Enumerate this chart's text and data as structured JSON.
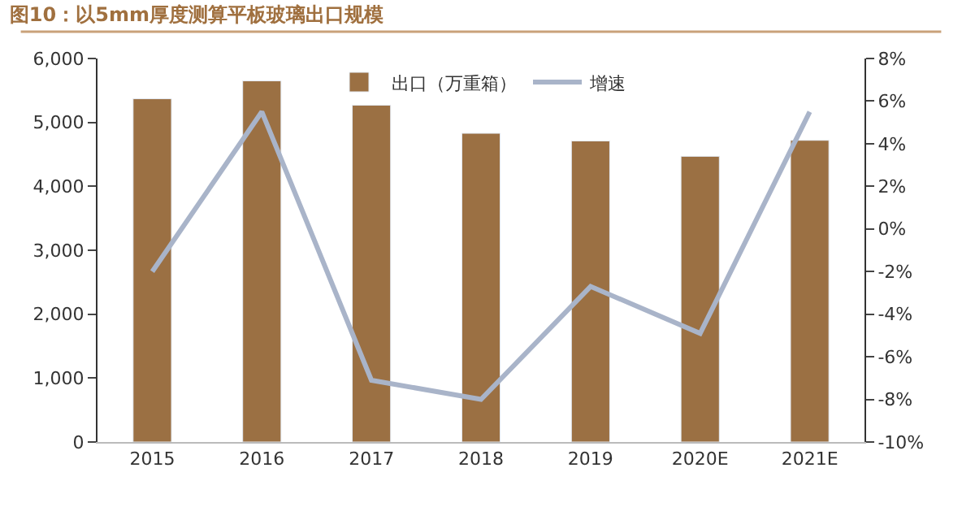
{
  "chart_data": {
    "type": "bar",
    "title": "图10：以5mm厚度测算平板玻璃出口规模",
    "categories": [
      "2015",
      "2016",
      "2017",
      "2018",
      "2019",
      "2020E",
      "2021E"
    ],
    "series": [
      {
        "name": "出口（万重箱）",
        "color": "#9b7043",
        "values": [
          5370,
          5650,
          5270,
          4830,
          4710,
          4470,
          4720
        ]
      },
      {
        "name": "增速",
        "type": "line",
        "axis": "y2",
        "color": "#a9b4c9",
        "values": [
          -2.0,
          5.5,
          -7.1,
          -8.0,
          -2.7,
          -4.9,
          5.5
        ]
      }
    ],
    "ylim": [
      0,
      6000
    ],
    "yticks": [
      {
        "value": 0,
        "label": "0"
      },
      {
        "value": 1000,
        "label": "1,000"
      },
      {
        "value": 2000,
        "label": "2,000"
      },
      {
        "value": 3000,
        "label": "3,000"
      },
      {
        "value": 4000,
        "label": "4,000"
      },
      {
        "value": 5000,
        "label": "5,000"
      },
      {
        "value": 6000,
        "label": "6,000"
      }
    ],
    "y2lim": [
      -10,
      8
    ],
    "y2ticks": [
      {
        "value": -10,
        "label": "-10%"
      },
      {
        "value": -8,
        "label": "-8%"
      },
      {
        "value": -6,
        "label": "-6%"
      },
      {
        "value": -4,
        "label": "-4%"
      },
      {
        "value": -2,
        "label": "-2%"
      },
      {
        "value": 0,
        "label": "0%"
      },
      {
        "value": 2,
        "label": "2%"
      },
      {
        "value": 4,
        "label": "4%"
      },
      {
        "value": 6,
        "label": "6%"
      },
      {
        "value": 8,
        "label": "8%"
      }
    ],
    "legend": "top",
    "marker": "none",
    "line_style": "solid"
  }
}
